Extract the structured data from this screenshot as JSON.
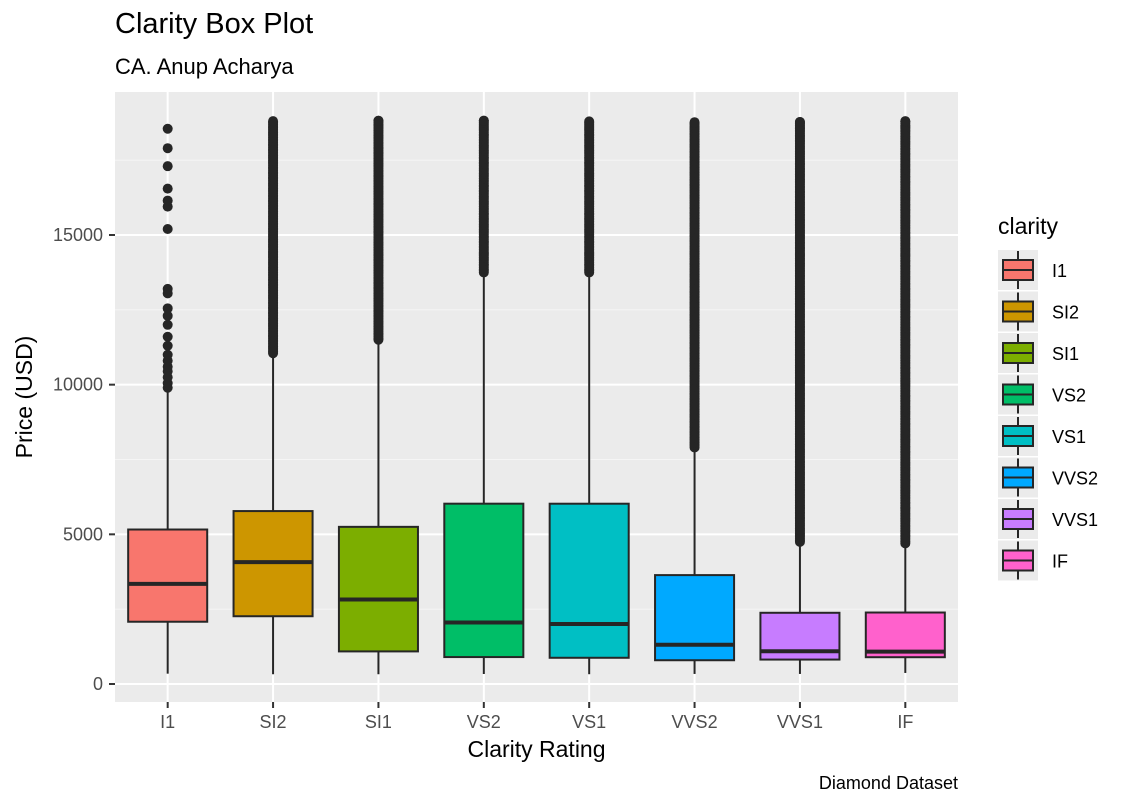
{
  "chart_data": {
    "type": "boxplot",
    "title": "Clarity Box Plot",
    "subtitle": "CA. Anup Acharya",
    "caption": "Diamond Dataset",
    "xlabel": "Clarity Rating",
    "ylabel": "Price (USD)",
    "ylim": [
      -600,
      19200
    ],
    "yticks": [
      0,
      5000,
      10000,
      15000
    ],
    "ytick_labels": [
      "0",
      "5000",
      "10000",
      "15000"
    ],
    "grid": true,
    "legend": {
      "title": "clarity",
      "position": "right"
    },
    "categories": [
      "I1",
      "SI2",
      "SI1",
      "VS2",
      "VS1",
      "VVS2",
      "VVS1",
      "IF"
    ],
    "colors": [
      "#F8766D",
      "#CD9600",
      "#7CAE00",
      "#00BE67",
      "#00BFC4",
      "#00A9FF",
      "#C77CFF",
      "#FF61CC"
    ],
    "boxes": [
      {
        "name": "I1",
        "whisker_low": 345,
        "q1": 2080,
        "median": 3344,
        "q3": 5161,
        "whisker_high": 9800,
        "outliers_range": [
          9850,
          18531
        ],
        "outliers": [
          9900,
          10050,
          10250,
          10450,
          10600,
          10800,
          11000,
          11300,
          11600,
          12000,
          12300,
          12550,
          13050,
          13200,
          15200,
          15950,
          16150,
          16550,
          17300,
          17900,
          18550
        ]
      },
      {
        "name": "SI2",
        "whisker_low": 326,
        "q1": 2264,
        "median": 4072,
        "q3": 5777,
        "whisker_high": 11000,
        "outliers_range": [
          11050,
          18804
        ]
      },
      {
        "name": "SI1",
        "whisker_low": 326,
        "q1": 1089,
        "median": 2822,
        "q3": 5250,
        "whisker_high": 11500,
        "outliers_range": [
          11500,
          18818
        ]
      },
      {
        "name": "VS2",
        "whisker_low": 334,
        "q1": 900,
        "median": 2054,
        "q3": 6024,
        "whisker_high": 13700,
        "outliers_range": [
          13750,
          18823
        ]
      },
      {
        "name": "VS1",
        "whisker_low": 327,
        "q1": 876,
        "median": 2005,
        "q3": 6023,
        "whisker_high": 13750,
        "outliers_range": [
          13750,
          18795
        ]
      },
      {
        "name": "VVS2",
        "whisker_low": 336,
        "q1": 794,
        "median": 1311,
        "q3": 3638,
        "whisker_high": 7900,
        "outliers_range": [
          7900,
          18768
        ]
      },
      {
        "name": "VVS1",
        "whisker_low": 336,
        "q1": 816,
        "median": 1093,
        "q3": 2379,
        "whisker_high": 4700,
        "outliers_range": [
          4750,
          18777
        ]
      },
      {
        "name": "IF",
        "whisker_low": 369,
        "q1": 895,
        "median": 1080,
        "q3": 2388,
        "whisker_high": 4650,
        "outliers_range": [
          4700,
          18806
        ]
      }
    ]
  }
}
